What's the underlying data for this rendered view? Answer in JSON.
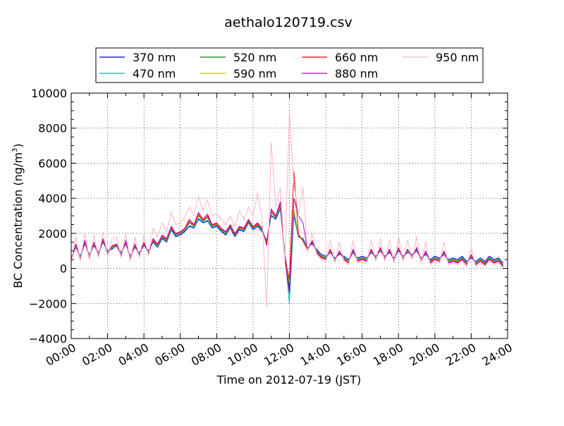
{
  "chart_data": {
    "type": "line",
    "title": "aethalo120719.csv",
    "xlabel": "Time on 2012-07-19 (JST)",
    "ylabel_main": "BC Concentration (ng/m",
    "ylabel_sup": "3",
    "ylabel_close": ")",
    "xlim_hours": [
      0,
      24
    ],
    "ylim": [
      -4000,
      10000
    ],
    "x_ticks": [
      "00:00",
      "02:00",
      "04:00",
      "06:00",
      "08:00",
      "10:00",
      "12:00",
      "14:00",
      "16:00",
      "18:00",
      "20:00",
      "22:00",
      "24:00"
    ],
    "y_ticks": [
      "−4000",
      "−2000",
      "0",
      "2000",
      "4000",
      "6000",
      "8000",
      "10000"
    ],
    "y_tick_values": [
      -4000,
      -2000,
      0,
      2000,
      4000,
      6000,
      8000,
      10000
    ],
    "grid": true,
    "legend_position": "top-center",
    "x_hours": [
      0.0,
      0.25,
      0.5,
      0.75,
      1.0,
      1.25,
      1.5,
      1.75,
      2.0,
      2.25,
      2.5,
      2.75,
      3.0,
      3.25,
      3.5,
      3.75,
      4.0,
      4.25,
      4.5,
      4.75,
      5.0,
      5.25,
      5.5,
      5.75,
      6.0,
      6.25,
      6.5,
      6.75,
      7.0,
      7.25,
      7.5,
      7.75,
      8.0,
      8.25,
      8.5,
      8.75,
      9.0,
      9.25,
      9.5,
      9.75,
      10.0,
      10.25,
      10.5,
      10.75,
      11.0,
      11.25,
      11.5,
      11.75,
      12.0,
      12.25,
      12.5,
      12.75,
      13.0,
      13.25,
      13.5,
      13.75,
      14.0,
      14.25,
      14.5,
      14.75,
      15.0,
      15.25,
      15.5,
      15.75,
      16.0,
      16.25,
      16.5,
      16.75,
      17.0,
      17.25,
      17.5,
      17.75,
      18.0,
      18.25,
      18.5,
      18.75,
      19.0,
      19.25,
      19.5,
      19.75,
      20.0,
      20.25,
      20.5,
      20.75,
      21.0,
      21.25,
      21.5,
      21.75,
      22.0,
      22.25,
      22.5,
      22.75,
      23.0,
      23.25,
      23.5,
      23.75
    ],
    "series": [
      {
        "name": "370 nm",
        "color": "#0000ff",
        "values": [
          600,
          1200,
          700,
          1400,
          800,
          1300,
          900,
          1500,
          1000,
          1100,
          1300,
          900,
          1400,
          700,
          1200,
          900,
          1300,
          1000,
          1500,
          1200,
          1700,
          1500,
          2200,
          1800,
          1900,
          2100,
          2400,
          2300,
          2800,
          2600,
          2700,
          2300,
          2400,
          2100,
          1900,
          2300,
          1800,
          2200,
          2100,
          2600,
          2200,
          2400,
          2100,
          1600,
          3000,
          2800,
          3400,
          900,
          -1200,
          3000,
          1800,
          1700,
          1200,
          1400,
          1100,
          800,
          700,
          900,
          600,
          800,
          700,
          500,
          900,
          600,
          700,
          600,
          900,
          700,
          1000,
          700,
          900,
          600,
          1000,
          700,
          900,
          800,
          1000,
          600,
          800,
          500,
          700,
          600,
          800,
          500,
          600,
          500,
          700,
          400,
          600,
          400,
          600,
          400,
          700,
          500,
          600,
          300
        ]
      },
      {
        "name": "470 nm",
        "color": "#00b3b3",
        "values": [
          550,
          1250,
          650,
          1450,
          750,
          1350,
          850,
          1550,
          950,
          1150,
          1250,
          850,
          1450,
          650,
          1250,
          850,
          1350,
          950,
          1550,
          1250,
          1750,
          1550,
          2250,
          1850,
          1950,
          2150,
          2450,
          2350,
          2850,
          2650,
          2750,
          2350,
          2450,
          2150,
          1950,
          2350,
          1850,
          2250,
          2150,
          2650,
          2250,
          2450,
          2150,
          1550,
          3050,
          2850,
          3450,
          800,
          -2000,
          3100,
          1850,
          1650,
          1150,
          1450,
          1050,
          750,
          650,
          950,
          550,
          850,
          650,
          450,
          950,
          550,
          650,
          550,
          950,
          650,
          1050,
          650,
          950,
          550,
          1050,
          650,
          950,
          750,
          1050,
          550,
          850,
          450,
          650,
          550,
          850,
          450,
          550,
          450,
          650,
          350,
          650,
          350,
          550,
          350,
          650,
          450,
          550,
          250
        ]
      },
      {
        "name": "520 nm",
        "color": "#008000",
        "values": [
          500,
          1300,
          600,
          1500,
          700,
          1400,
          800,
          1600,
          900,
          1200,
          1300,
          800,
          1500,
          600,
          1300,
          800,
          1400,
          900,
          1600,
          1300,
          1800,
          1600,
          2300,
          1900,
          2000,
          2200,
          2600,
          2400,
          3000,
          2700,
          2900,
          2400,
          2500,
          2200,
          2000,
          2400,
          1900,
          2300,
          2200,
          2700,
          2300,
          2500,
          2200,
          1500,
          3200,
          2900,
          3600,
          700,
          -1000,
          3300,
          1900,
          1600,
          1100,
          1500,
          1000,
          700,
          600,
          1000,
          500,
          900,
          600,
          400,
          1000,
          500,
          600,
          500,
          1000,
          600,
          1100,
          600,
          1000,
          500,
          1100,
          600,
          1000,
          700,
          1100,
          500,
          900,
          400,
          600,
          500,
          900,
          400,
          500,
          400,
          600,
          300,
          700,
          300,
          500,
          300,
          600,
          400,
          500,
          200
        ]
      },
      {
        "name": "590 nm",
        "color": "#bfbf00",
        "values": [
          480,
          1320,
          580,
          1520,
          680,
          1420,
          780,
          1620,
          880,
          1220,
          1320,
          780,
          1520,
          580,
          1320,
          780,
          1420,
          880,
          1620,
          1320,
          1820,
          1620,
          2320,
          1920,
          2020,
          2220,
          2650,
          2420,
          3050,
          2720,
          2950,
          2420,
          2520,
          2220,
          2020,
          2420,
          1920,
          2320,
          2220,
          2720,
          2320,
          2520,
          2220,
          1450,
          3250,
          2920,
          3650,
          650,
          -800,
          3350,
          1920,
          1580,
          1080,
          1520,
          980,
          680,
          580,
          1020,
          480,
          920,
          580,
          380,
          1020,
          480,
          580,
          480,
          1020,
          580,
          1120,
          580,
          1020,
          480,
          1120,
          580,
          1020,
          680,
          1120,
          480,
          920,
          380,
          580,
          480,
          920,
          380,
          480,
          380,
          580,
          280,
          720,
          280,
          480,
          280,
          580,
          380,
          480,
          180
        ]
      },
      {
        "name": "660 nm",
        "color": "#ff0000",
        "values": [
          450,
          1350,
          550,
          1550,
          650,
          1450,
          750,
          1650,
          850,
          1250,
          1350,
          750,
          1550,
          550,
          1350,
          750,
          1450,
          850,
          1650,
          1350,
          1850,
          1650,
          2350,
          1950,
          2050,
          2250,
          2700,
          2450,
          3100,
          2750,
          3000,
          2450,
          2550,
          2250,
          2050,
          2450,
          1950,
          2350,
          2250,
          2750,
          2350,
          2550,
          2250,
          1400,
          3300,
          2950,
          3700,
          600,
          -600,
          5500,
          1950,
          1550,
          1050,
          1550,
          950,
          650,
          550,
          1050,
          450,
          950,
          550,
          350,
          1050,
          450,
          550,
          450,
          1050,
          550,
          1150,
          550,
          1050,
          450,
          1150,
          550,
          1050,
          650,
          1150,
          450,
          950,
          350,
          550,
          450,
          950,
          350,
          450,
          350,
          550,
          250,
          750,
          250,
          450,
          250,
          550,
          350,
          450,
          150
        ]
      },
      {
        "name": "880 nm",
        "color": "#bf00bf",
        "values": [
          400,
          1400,
          500,
          1600,
          600,
          1500,
          700,
          1700,
          800,
          1300,
          1400,
          700,
          1600,
          500,
          1400,
          700,
          1500,
          800,
          1700,
          1400,
          1900,
          1700,
          2400,
          2000,
          2100,
          2300,
          2800,
          2500,
          3200,
          2800,
          3100,
          2500,
          2600,
          2300,
          2100,
          2500,
          2000,
          2400,
          2300,
          2800,
          2400,
          2600,
          2300,
          1300,
          3400,
          3000,
          3800,
          500,
          -1400,
          4000,
          3000,
          2600,
          1000,
          1600,
          900,
          600,
          500,
          1100,
          400,
          1000,
          500,
          300,
          1100,
          400,
          500,
          400,
          1100,
          500,
          1200,
          500,
          1100,
          400,
          1200,
          500,
          1100,
          600,
          1200,
          400,
          1000,
          300,
          500,
          400,
          1000,
          300,
          400,
          300,
          500,
          200,
          800,
          200,
          400,
          200,
          500,
          300,
          400,
          100
        ]
      },
      {
        "name": "950 nm",
        "color": "#ffb6c1",
        "values": [
          300,
          1800,
          400,
          2000,
          500,
          1900,
          600,
          2100,
          700,
          1700,
          1800,
          600,
          2000,
          400,
          1800,
          600,
          1900,
          700,
          2300,
          1800,
          2600,
          2100,
          3200,
          2500,
          2600,
          2900,
          3500,
          3000,
          4100,
          3300,
          3900,
          3000,
          3100,
          2800,
          2500,
          3000,
          2400,
          3300,
          2800,
          3500,
          3000,
          4300,
          2800,
          -2200,
          7200,
          3500,
          4600,
          400,
          9000,
          4800,
          3000,
          4600,
          900,
          2000,
          800,
          500,
          400,
          1600,
          300,
          1500,
          400,
          200,
          1600,
          300,
          400,
          300,
          1600,
          400,
          1700,
          400,
          1600,
          300,
          1800,
          400,
          1600,
          500,
          1800,
          300,
          1500,
          200,
          400,
          300,
          1500,
          200,
          300,
          200,
          400,
          100,
          1200,
          100,
          300,
          100,
          400,
          200,
          300,
          0
        ]
      }
    ]
  }
}
